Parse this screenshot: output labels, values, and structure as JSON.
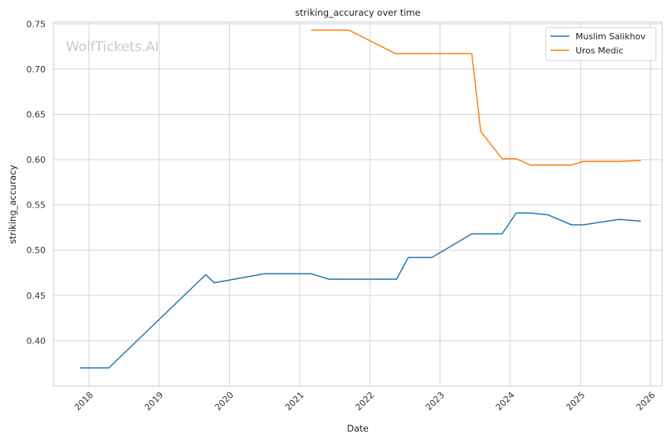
{
  "chart_data": {
    "type": "line",
    "title": "striking_accuracy over time",
    "xlabel": "Date",
    "ylabel": "striking_accuracy",
    "watermark": "WolfTickets.AI",
    "xlim": [
      "2017-07-01",
      "2026-03-01"
    ],
    "ylim": [
      0.35,
      0.752
    ],
    "x_ticks": [
      "2018-01-01",
      "2019-01-01",
      "2020-01-01",
      "2021-01-01",
      "2022-01-01",
      "2023-01-01",
      "2024-01-01",
      "2025-01-01",
      "2026-01-01"
    ],
    "x_tick_labels": [
      "2018",
      "2019",
      "2020",
      "2021",
      "2022",
      "2023",
      "2024",
      "2025",
      "2026"
    ],
    "y_ticks": [
      0.4,
      0.45,
      0.5,
      0.55,
      0.6,
      0.65,
      0.7,
      0.75
    ],
    "y_tick_labels": [
      "0.40",
      "0.45",
      "0.50",
      "0.55",
      "0.60",
      "0.65",
      "0.70",
      "0.75"
    ],
    "grid": true,
    "legend_position": "top-right",
    "series": [
      {
        "name": "Muslim Salikhov",
        "color": "#1f77b4",
        "points": [
          {
            "x": "2017-11-15",
            "y": 0.37
          },
          {
            "x": "2018-04-15",
            "y": 0.37
          },
          {
            "x": "2019-09-01",
            "y": 0.473
          },
          {
            "x": "2019-10-15",
            "y": 0.464
          },
          {
            "x": "2020-07-01",
            "y": 0.474
          },
          {
            "x": "2021-03-01",
            "y": 0.474
          },
          {
            "x": "2021-06-01",
            "y": 0.468
          },
          {
            "x": "2022-05-20",
            "y": 0.468
          },
          {
            "x": "2022-07-20",
            "y": 0.492
          },
          {
            "x": "2022-11-20",
            "y": 0.492
          },
          {
            "x": "2023-06-15",
            "y": 0.518
          },
          {
            "x": "2023-11-20",
            "y": 0.518
          },
          {
            "x": "2024-02-01",
            "y": 0.541
          },
          {
            "x": "2024-04-15",
            "y": 0.541
          },
          {
            "x": "2024-07-15",
            "y": 0.539
          },
          {
            "x": "2024-11-15",
            "y": 0.528
          },
          {
            "x": "2025-01-15",
            "y": 0.528
          },
          {
            "x": "2025-07-20",
            "y": 0.534
          },
          {
            "x": "2025-11-10",
            "y": 0.532
          }
        ]
      },
      {
        "name": "Uros Medic",
        "color": "#ff7f0e",
        "points": [
          {
            "x": "2021-03-01",
            "y": 0.743
          },
          {
            "x": "2021-09-15",
            "y": 0.743
          },
          {
            "x": "2022-05-15",
            "y": 0.717
          },
          {
            "x": "2023-06-15",
            "y": 0.717
          },
          {
            "x": "2023-08-01",
            "y": 0.631
          },
          {
            "x": "2023-11-20",
            "y": 0.601
          },
          {
            "x": "2024-02-01",
            "y": 0.601
          },
          {
            "x": "2024-04-15",
            "y": 0.594
          },
          {
            "x": "2024-11-15",
            "y": 0.594
          },
          {
            "x": "2025-01-15",
            "y": 0.598
          },
          {
            "x": "2025-07-20",
            "y": 0.598
          },
          {
            "x": "2025-11-10",
            "y": 0.599
          }
        ]
      }
    ]
  }
}
